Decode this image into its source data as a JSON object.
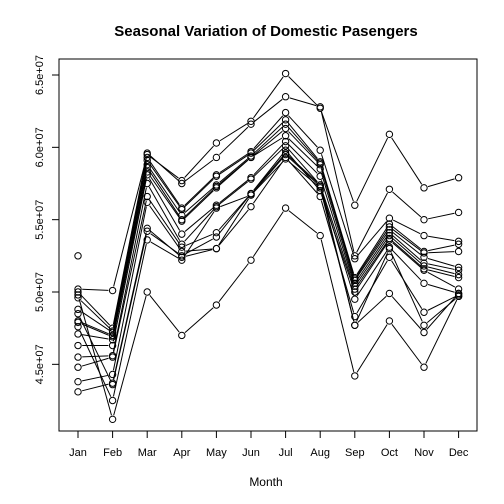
{
  "chart_data": {
    "type": "line",
    "title": "Seasonal Variation of Domestic Pasengers",
    "xlabel": "Month",
    "ylabel": "",
    "categories": [
      "Jan",
      "Feb",
      "Mar",
      "Apr",
      "May",
      "Jun",
      "Jul",
      "Aug",
      "Sep",
      "Oct",
      "Nov",
      "Dec"
    ],
    "yticks": [
      45000000,
      50000000,
      55000000,
      60000000,
      65000000
    ],
    "ytick_labels": [
      "4.5e+07",
      "5.0e+07",
      "5.5e+07",
      "6.0e+07",
      "6.5e+07"
    ],
    "ylim": [
      41800000,
      66600000
    ],
    "grid": false,
    "legend": "none",
    "extra_points": [
      {
        "x": "Jan",
        "y": 52500000
      }
    ],
    "series": [
      {
        "values": [
          49800000,
          41200000,
          50000000,
          47000000,
          49100000,
          52200000,
          55800000,
          53900000,
          44200000,
          48000000,
          44800000,
          49700000
        ]
      },
      {
        "values": [
          50200000,
          50100000,
          59500000,
          57700000,
          60300000,
          61800000,
          65100000,
          62700000,
          56000000,
          60900000,
          57200000,
          57900000
        ]
      },
      {
        "values": [
          50000000,
          47500000,
          59600000,
          57500000,
          59300000,
          61600000,
          63500000,
          62800000,
          52500000,
          57100000,
          55000000,
          55500000
        ]
      },
      {
        "values": [
          49600000,
          47300000,
          59300000,
          55800000,
          58100000,
          59700000,
          62400000,
          59800000,
          52300000,
          55100000,
          53900000,
          53500000
        ]
      },
      {
        "values": [
          48800000,
          47200000,
          59100000,
          55700000,
          58000000,
          59600000,
          61900000,
          59000000,
          51000000,
          54700000,
          52800000,
          53300000
        ]
      },
      {
        "values": [
          48000000,
          47000000,
          58800000,
          55300000,
          57400000,
          59400000,
          61600000,
          58900000,
          50900000,
          54500000,
          52700000,
          52800000
        ]
      },
      {
        "values": [
          47900000,
          46900000,
          58600000,
          55000000,
          57300000,
          59300000,
          61300000,
          58800000,
          50800000,
          54300000,
          52400000,
          51700000
        ]
      },
      {
        "values": [
          47100000,
          46700000,
          58300000,
          54900000,
          57200000,
          59300000,
          60800000,
          58500000,
          50600000,
          54100000,
          52000000,
          51500000
        ]
      },
      {
        "values": [
          46300000,
          46300000,
          58100000,
          54000000,
          56000000,
          57900000,
          60400000,
          58000000,
          50400000,
          53900000,
          51800000,
          51200000
        ]
      },
      {
        "values": [
          45500000,
          45600000,
          57500000,
          53300000,
          55900000,
          57800000,
          60100000,
          57400000,
          50200000,
          53700000,
          51600000,
          51000000
        ]
      },
      {
        "values": [
          44800000,
          45500000,
          56600000,
          53100000,
          54100000,
          56800000,
          59800000,
          57000000,
          50000000,
          53600000,
          51500000,
          50200000
        ]
      },
      {
        "values": [
          43800000,
          44300000,
          56200000,
          52800000,
          53000000,
          56700000,
          59500000,
          57300000,
          49500000,
          53100000,
          50600000,
          49900000
        ]
      },
      {
        "values": [
          43100000,
          43700000,
          54400000,
          52400000,
          53000000,
          55900000,
          59300000,
          56600000,
          48300000,
          52400000,
          48600000,
          49800000
        ]
      },
      {
        "values": [
          48500000,
          43600000,
          54200000,
          52500000,
          53800000,
          56800000,
          59600000,
          57400000,
          47700000,
          53000000,
          47700000,
          49700000
        ]
      },
      {
        "values": [
          47600000,
          42500000,
          53600000,
          52200000,
          55800000,
          56700000,
          59200000,
          57200000,
          47700000,
          49900000,
          47200000,
          49900000
        ]
      }
    ]
  }
}
